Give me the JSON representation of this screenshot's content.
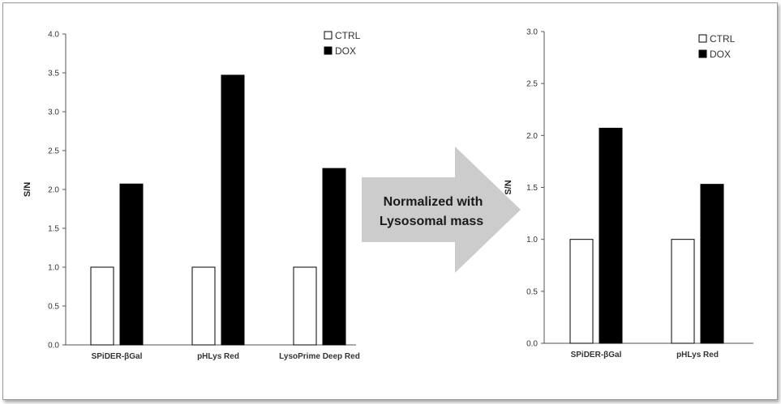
{
  "arrow": {
    "line1": "Normalized with",
    "line2": "Lysosomal mass"
  },
  "colors": {
    "ctrl_fill": "#ffffff",
    "dox_fill": "#000000",
    "arrow_fill": "#cccccc",
    "axis": "#555555"
  },
  "chart_data": [
    {
      "type": "bar",
      "title": "",
      "xlabel": "",
      "ylabel": "S/N",
      "ylim": [
        0,
        4.0
      ],
      "yticks": [
        "0.0",
        "0.5",
        "1.0",
        "1.5",
        "2.0",
        "2.5",
        "3.0",
        "3.5",
        "4.0"
      ],
      "categories": [
        "SPiDER-βGal",
        "pHLys Red",
        "LysoPrime Deep Red"
      ],
      "series": [
        {
          "name": "CTRL",
          "values": [
            1.0,
            1.0,
            1.0
          ]
        },
        {
          "name": "DOX",
          "values": [
            2.07,
            3.47,
            2.27
          ]
        }
      ],
      "legend": "top-right",
      "grid": false
    },
    {
      "type": "bar",
      "title": "",
      "xlabel": "",
      "ylabel": "S/N",
      "ylim": [
        0,
        3.0
      ],
      "yticks": [
        "0.0",
        "0.5",
        "1.0",
        "1.5",
        "2.0",
        "2.5",
        "3.0"
      ],
      "categories": [
        "SPiDER-βGal",
        "pHLys Red"
      ],
      "series": [
        {
          "name": "CTRL",
          "values": [
            1.0,
            1.0
          ]
        },
        {
          "name": "DOX",
          "values": [
            2.07,
            1.53
          ]
        }
      ],
      "legend": "top-right",
      "grid": false
    }
  ]
}
